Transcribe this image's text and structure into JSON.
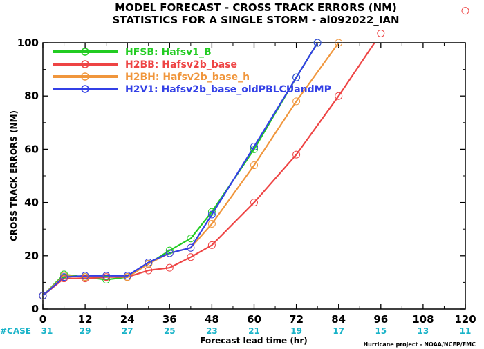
{
  "chart_data": {
    "type": "line",
    "title_line1": "MODEL FORECAST - CROSS TRACK ERRORS (NM)",
    "title_line2": "STATISTICS FOR A SINGLE STORM - al092022_IAN",
    "xlabel": "Forecast lead time (hr)",
    "ylabel": "CROSS TRACK ERRORS (NM)",
    "credit": "Hurricane project - NOAA/NCEP/EMC",
    "xlim": [
      0,
      120
    ],
    "ylim": [
      0,
      100
    ],
    "xticks": [
      "0",
      "12",
      "24",
      "36",
      "48",
      "60",
      "72",
      "84",
      "96",
      "108",
      "120"
    ],
    "yticks": [
      "0",
      "20",
      "40",
      "60",
      "80",
      "100"
    ],
    "case_label": "#CASE",
    "case_counts": [
      "31",
      "29",
      "27",
      "25",
      "23",
      "21",
      "19",
      "17",
      "15",
      "13",
      "11"
    ],
    "case_color": "#19b3c8",
    "legend_position": "top-left",
    "series": [
      {
        "name": "HFSB: Hafsv1_B",
        "color": "#22cc22",
        "points": [
          [
            0,
            5
          ],
          [
            6,
            13
          ],
          [
            12,
            12
          ],
          [
            18,
            11
          ],
          [
            24,
            12
          ],
          [
            30,
            17
          ],
          [
            36,
            22
          ],
          [
            42,
            26.5
          ],
          [
            48,
            36.5
          ],
          [
            60,
            60
          ],
          [
            72,
            87
          ],
          [
            78,
            100
          ]
        ]
      },
      {
        "name": "H2BB: Hafsv2b_base",
        "color": "#ee4444",
        "points": [
          [
            0,
            5
          ],
          [
            6,
            11.5
          ],
          [
            12,
            11.5
          ],
          [
            18,
            12
          ],
          [
            24,
            12
          ],
          [
            30,
            14.5
          ],
          [
            36,
            15.5
          ],
          [
            42,
            19.5
          ],
          [
            48,
            24
          ],
          [
            60,
            40
          ],
          [
            72,
            58
          ],
          [
            84,
            80
          ],
          [
            96,
            103.5
          ],
          [
            120,
            112
          ]
        ]
      },
      {
        "name": "H2BH: Hafsv2b_base_h",
        "color": "#f0963c",
        "points": [
          [
            0,
            5
          ],
          [
            6,
            12.5
          ],
          [
            12,
            12
          ],
          [
            18,
            12.5
          ],
          [
            24,
            12
          ],
          [
            30,
            17
          ],
          [
            36,
            21
          ],
          [
            42,
            23
          ],
          [
            48,
            32
          ],
          [
            60,
            54
          ],
          [
            72,
            78
          ],
          [
            84,
            100
          ]
        ]
      },
      {
        "name": "H2V1: Hafsv2b_base_oldPBLCUandMP",
        "color": "#3340e6",
        "points": [
          [
            0,
            5
          ],
          [
            6,
            12
          ],
          [
            12,
            12.5
          ],
          [
            18,
            12.5
          ],
          [
            24,
            12.5
          ],
          [
            30,
            17.5
          ],
          [
            36,
            21
          ],
          [
            42,
            23
          ],
          [
            48,
            35.5
          ],
          [
            60,
            61
          ],
          [
            72,
            87
          ],
          [
            78,
            100
          ]
        ]
      }
    ]
  }
}
